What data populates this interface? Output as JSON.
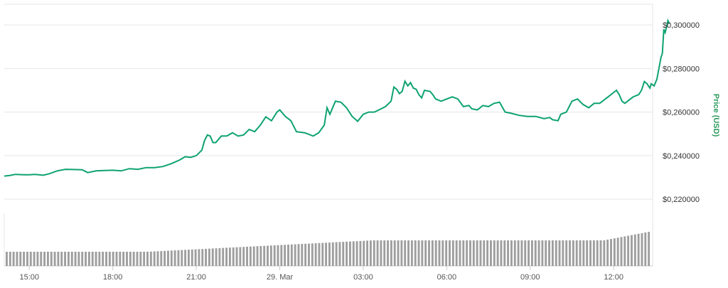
{
  "chart_data": {
    "type": "line",
    "ylabel": "Price (USD)",
    "ylim": [
      0.2135,
      0.3095
    ],
    "y_ticks": [
      "0,300000",
      "0,280000",
      "0,260000",
      "0,240000",
      "0,220000"
    ],
    "y_tick_values": [
      0.3,
      0.28,
      0.26,
      0.24,
      0.22
    ],
    "y_tick_prefix": "$",
    "x_ticks": [
      "15:00",
      "18:00",
      "21:00",
      "29. Mar",
      "03:00",
      "06:00",
      "09:00",
      "12:00"
    ],
    "x_tick_hours": [
      15,
      18,
      21,
      24,
      27,
      30,
      33,
      36
    ],
    "xlim_hours": [
      14.1,
      37.4
    ],
    "x_unit": "hours since 28 Mar 00:00",
    "series": [
      {
        "values": [
          [
            14.1,
            0.2306
          ],
          [
            14.3,
            0.2309
          ],
          [
            14.5,
            0.2314
          ],
          [
            14.8,
            0.2312
          ],
          [
            15.0,
            0.2312
          ],
          [
            15.2,
            0.2314
          ],
          [
            15.5,
            0.231
          ],
          [
            15.7,
            0.2316
          ],
          [
            16.0,
            0.233
          ],
          [
            16.3,
            0.2337
          ],
          [
            16.6,
            0.2336
          ],
          [
            16.9,
            0.2335
          ],
          [
            17.1,
            0.2322
          ],
          [
            17.4,
            0.233
          ],
          [
            17.7,
            0.2332
          ],
          [
            18.0,
            0.2333
          ],
          [
            18.3,
            0.233
          ],
          [
            18.6,
            0.234
          ],
          [
            18.9,
            0.2337
          ],
          [
            19.2,
            0.2345
          ],
          [
            19.5,
            0.2345
          ],
          [
            19.8,
            0.235
          ],
          [
            20.1,
            0.2363
          ],
          [
            20.4,
            0.238
          ],
          [
            20.6,
            0.2395
          ],
          [
            20.8,
            0.2392
          ],
          [
            21.0,
            0.24
          ],
          [
            21.2,
            0.2425
          ],
          [
            21.3,
            0.247
          ],
          [
            21.4,
            0.2495
          ],
          [
            21.5,
            0.249
          ],
          [
            21.6,
            0.246
          ],
          [
            21.7,
            0.246
          ],
          [
            21.9,
            0.249
          ],
          [
            22.1,
            0.249
          ],
          [
            22.3,
            0.2505
          ],
          [
            22.5,
            0.249
          ],
          [
            22.7,
            0.2495
          ],
          [
            22.9,
            0.252
          ],
          [
            23.1,
            0.251
          ],
          [
            23.3,
            0.254
          ],
          [
            23.5,
            0.2578
          ],
          [
            23.7,
            0.256
          ],
          [
            23.9,
            0.26
          ],
          [
            24.0,
            0.261
          ],
          [
            24.2,
            0.258
          ],
          [
            24.4,
            0.256
          ],
          [
            24.6,
            0.251
          ],
          [
            24.9,
            0.2505
          ],
          [
            25.2,
            0.249
          ],
          [
            25.4,
            0.2505
          ],
          [
            25.6,
            0.254
          ],
          [
            25.7,
            0.262
          ],
          [
            25.8,
            0.259
          ],
          [
            26.0,
            0.265
          ],
          [
            26.2,
            0.2645
          ],
          [
            26.4,
            0.262
          ],
          [
            26.6,
            0.258
          ],
          [
            26.8,
            0.2558
          ],
          [
            27.0,
            0.259
          ],
          [
            27.2,
            0.26
          ],
          [
            27.4,
            0.26
          ],
          [
            27.6,
            0.2612
          ],
          [
            27.8,
            0.2625
          ],
          [
            28.0,
            0.265
          ],
          [
            28.1,
            0.2715
          ],
          [
            28.2,
            0.2705
          ],
          [
            28.3,
            0.2685
          ],
          [
            28.4,
            0.2695
          ],
          [
            28.5,
            0.2742
          ],
          [
            28.6,
            0.272
          ],
          [
            28.7,
            0.2735
          ],
          [
            28.8,
            0.271
          ],
          [
            28.9,
            0.2705
          ],
          [
            29.0,
            0.268
          ],
          [
            29.1,
            0.2665
          ],
          [
            29.2,
            0.27
          ],
          [
            29.4,
            0.2695
          ],
          [
            29.5,
            0.268
          ],
          [
            29.6,
            0.266
          ],
          [
            29.8,
            0.265
          ],
          [
            30.0,
            0.266
          ],
          [
            30.2,
            0.267
          ],
          [
            30.4,
            0.266
          ],
          [
            30.6,
            0.2625
          ],
          [
            30.8,
            0.263
          ],
          [
            30.9,
            0.2615
          ],
          [
            31.1,
            0.261
          ],
          [
            31.3,
            0.263
          ],
          [
            31.5,
            0.2625
          ],
          [
            31.7,
            0.264
          ],
          [
            31.9,
            0.2645
          ],
          [
            32.1,
            0.26
          ],
          [
            32.3,
            0.2595
          ],
          [
            32.6,
            0.2585
          ],
          [
            32.9,
            0.258
          ],
          [
            33.2,
            0.258
          ],
          [
            33.5,
            0.257
          ],
          [
            33.7,
            0.2575
          ],
          [
            33.8,
            0.2565
          ],
          [
            34.0,
            0.256
          ],
          [
            34.1,
            0.259
          ],
          [
            34.3,
            0.26
          ],
          [
            34.5,
            0.265
          ],
          [
            34.7,
            0.266
          ],
          [
            34.9,
            0.2635
          ],
          [
            35.1,
            0.262
          ],
          [
            35.3,
            0.264
          ],
          [
            35.5,
            0.264
          ],
          [
            35.7,
            0.266
          ],
          [
            35.8,
            0.267
          ],
          [
            36.0,
            0.269
          ],
          [
            36.1,
            0.27
          ],
          [
            36.2,
            0.268
          ],
          [
            36.3,
            0.265
          ],
          [
            36.4,
            0.264
          ],
          [
            36.5,
            0.265
          ],
          [
            36.7,
            0.267
          ],
          [
            36.9,
            0.268
          ],
          [
            37.0,
            0.27
          ],
          [
            37.1,
            0.274
          ],
          [
            37.2,
            0.273
          ],
          [
            37.3,
            0.271
          ],
          [
            37.35,
            0.273
          ],
          [
            37.45,
            0.272
          ],
          [
            37.55,
            0.275
          ],
          [
            37.7,
            0.285
          ],
          [
            37.75,
            0.287
          ],
          [
            37.8,
            0.298
          ],
          [
            37.85,
            0.2965
          ],
          [
            37.9,
            0.299
          ],
          [
            37.95,
            0.302
          ],
          [
            38.0,
            0.3005
          ]
        ]
      }
    ],
    "volume_bars": 188,
    "colors": {
      "line": "#0ea36f",
      "volume_bar": "#9e9e9e",
      "axis_title": "#2f9b5e",
      "grid": "#e6e6e6"
    },
    "grid": true,
    "legend": "none"
  }
}
